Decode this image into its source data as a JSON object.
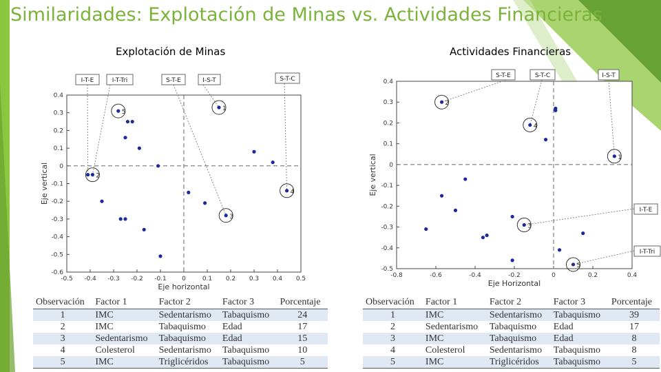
{
  "slide": {
    "title": "Similaridades: Explotación de Minas vs. Actividades Financieras",
    "accent_color": "#7bb33a"
  },
  "chart_data": [
    {
      "type": "scatter",
      "title": "Explotación de Minas",
      "xlabel": "Eje horizontal",
      "ylabel": "Eje vertical",
      "xlim": [
        -0.5,
        0.5
      ],
      "ylim": [
        -0.6,
        0.4
      ],
      "xticks": [
        "-0.5",
        "-0.4",
        "-0.3",
        "-0.2",
        "-0.1",
        "0",
        "0.1",
        "0.2",
        "0.3",
        "0.4",
        "0.5"
      ],
      "yticks": [
        "-0.6",
        "-0.5",
        "-0.4",
        "-0.3",
        "-0.2",
        "-0.1",
        "0",
        "0.1",
        "0.2",
        "0.3",
        "0.4"
      ],
      "points": [
        {
          "x": -0.28,
          "y": 0.31
        },
        {
          "x": -0.24,
          "y": 0.25
        },
        {
          "x": -0.22,
          "y": 0.25
        },
        {
          "x": -0.25,
          "y": 0.16
        },
        {
          "x": -0.19,
          "y": 0.1
        },
        {
          "x": 0.3,
          "y": 0.08
        },
        {
          "x": 0.38,
          "y": 0.02
        },
        {
          "x": -0.11,
          "y": 0.0
        },
        {
          "x": -0.41,
          "y": -0.05
        },
        {
          "x": -0.39,
          "y": -0.05
        },
        {
          "x": -0.35,
          "y": -0.2
        },
        {
          "x": 0.02,
          "y": -0.15
        },
        {
          "x": 0.09,
          "y": -0.21
        },
        {
          "x": 0.15,
          "y": 0.33
        },
        {
          "x": 0.44,
          "y": -0.14
        },
        {
          "x": 0.18,
          "y": -0.28
        },
        {
          "x": -0.27,
          "y": -0.3
        },
        {
          "x": -0.25,
          "y": -0.3
        },
        {
          "x": -0.17,
          "y": -0.36
        },
        {
          "x": -0.1,
          "y": -0.51
        }
      ],
      "circled": [
        {
          "label": "1",
          "x": 0.15,
          "y": 0.33
        },
        {
          "label": "2",
          "x": -0.39,
          "y": -0.05
        },
        {
          "label": "3",
          "x": 0.18,
          "y": -0.28
        },
        {
          "label": "4",
          "x": 0.44,
          "y": -0.14
        },
        {
          "label": "5",
          "x": -0.28,
          "y": 0.31
        }
      ],
      "callouts": [
        {
          "label": "I-T-E",
          "target_x": -0.41,
          "target_y": -0.05
        },
        {
          "label": "I-T-Tri",
          "target_x": -0.39,
          "target_y": -0.05
        },
        {
          "label": "S-T-E",
          "target_x": 0.18,
          "target_y": -0.28
        },
        {
          "label": "I-S-T",
          "target_x": 0.15,
          "target_y": 0.33
        },
        {
          "label": "S-T-C",
          "target_x": 0.44,
          "target_y": -0.14
        }
      ]
    },
    {
      "type": "scatter",
      "title": "Actividades Financieras",
      "xlabel": "Eje Horizontal",
      "ylabel": "Eje vertical",
      "xlim": [
        -0.8,
        0.4
      ],
      "ylim": [
        -0.5,
        0.4
      ],
      "xticks": [
        "-0.8",
        "-0.6",
        "-0.4",
        "-0.2",
        "0",
        "0.2",
        "0.4"
      ],
      "yticks": [
        "-0.5",
        "-0.4",
        "-0.3",
        "-0.2",
        "-0.1",
        "0",
        "0.1",
        "0.2",
        "0.3",
        "0.4"
      ],
      "points": [
        {
          "x": -0.57,
          "y": 0.3
        },
        {
          "x": -0.12,
          "y": 0.19
        },
        {
          "x": 0.01,
          "y": 0.27
        },
        {
          "x": 0.01,
          "y": 0.26
        },
        {
          "x": -0.04,
          "y": 0.12
        },
        {
          "x": 0.31,
          "y": 0.04
        },
        {
          "x": -0.45,
          "y": -0.07
        },
        {
          "x": -0.57,
          "y": -0.15
        },
        {
          "x": -0.5,
          "y": -0.22
        },
        {
          "x": -0.65,
          "y": -0.31
        },
        {
          "x": -0.34,
          "y": -0.34
        },
        {
          "x": -0.36,
          "y": -0.35
        },
        {
          "x": -0.21,
          "y": -0.25
        },
        {
          "x": -0.15,
          "y": -0.29
        },
        {
          "x": 0.03,
          "y": -0.41
        },
        {
          "x": 0.15,
          "y": -0.33
        },
        {
          "x": -0.21,
          "y": -0.46
        },
        {
          "x": 0.1,
          "y": -0.48
        }
      ],
      "circled": [
        {
          "label": "1",
          "x": 0.31,
          "y": 0.04
        },
        {
          "label": "2",
          "x": -0.57,
          "y": 0.3
        },
        {
          "label": "3",
          "x": -0.15,
          "y": -0.29
        },
        {
          "label": "4",
          "x": -0.12,
          "y": 0.19
        },
        {
          "label": "5",
          "x": 0.1,
          "y": -0.48
        }
      ],
      "callouts": [
        {
          "label": "S-T-E",
          "target_x": -0.57,
          "target_y": 0.3
        },
        {
          "label": "S-T-C",
          "target_x": -0.12,
          "target_y": 0.19
        },
        {
          "label": "I-S-T",
          "target_x": 0.31,
          "target_y": 0.04
        },
        {
          "label": "I-T-E",
          "target_x": -0.15,
          "target_y": -0.29
        },
        {
          "label": "I-T-Tri",
          "target_x": 0.1,
          "target_y": -0.48
        }
      ]
    }
  ],
  "tables": [
    {
      "headers": [
        "Observación",
        "Factor 1",
        "Factor 2",
        "Factor 3",
        "Porcentaje"
      ],
      "rows": [
        [
          "1",
          "IMC",
          "Sedentarismo",
          "Tabaquismo",
          "24"
        ],
        [
          "2",
          "IMC",
          "Tabaquismo",
          "Edad",
          "17"
        ],
        [
          "3",
          "Sedentarismo",
          "Tabaquismo",
          "Edad",
          "15"
        ],
        [
          "4",
          "Colesterol",
          "Sedentarismo",
          "Tabaquismo",
          "10"
        ],
        [
          "5",
          "IMC",
          "Triglicéridos",
          "Tabaquismo",
          "5"
        ]
      ]
    },
    {
      "headers": [
        "Observación",
        "Factor 1",
        "Factor 2",
        "Factor 3",
        "Porcentaje"
      ],
      "rows": [
        [
          "1",
          "IMC",
          "Sedentarismo",
          "Tabaquismo",
          "39"
        ],
        [
          "2",
          "Sedentarismo",
          "Tabaquismo",
          "Edad",
          "17"
        ],
        [
          "3",
          "IMC",
          "Tabaquismo",
          "Edad",
          "8"
        ],
        [
          "4",
          "Colesterol",
          "Sedentarismo",
          "Tabaquismo",
          "8"
        ],
        [
          "5",
          "IMC",
          "Triglicéridos",
          "Tabaquismo",
          "5"
        ]
      ]
    }
  ]
}
